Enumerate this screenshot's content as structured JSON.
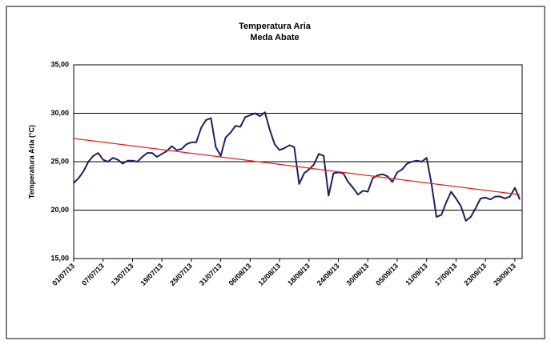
{
  "chart_data": {
    "type": "line",
    "title": "Temperatura Aria",
    "subtitle": "Meda Abate",
    "y_label": "Temperatura Aria (°C)",
    "categories": [
      "01/07/13",
      null,
      null,
      null,
      null,
      null,
      "07/07/13",
      null,
      null,
      null,
      null,
      null,
      "13/07/13",
      null,
      null,
      null,
      null,
      null,
      "19/07/13",
      null,
      null,
      null,
      null,
      null,
      "25/07/13",
      null,
      null,
      null,
      null,
      null,
      "31/07/13",
      null,
      null,
      null,
      null,
      null,
      "06/08/13",
      null,
      null,
      null,
      null,
      null,
      "12/08/13",
      null,
      null,
      null,
      null,
      null,
      "18/08/13",
      null,
      null,
      null,
      null,
      null,
      "24/08/13",
      null,
      null,
      null,
      null,
      null,
      "30/08/13",
      null,
      null,
      null,
      null,
      null,
      "05/09/13",
      null,
      null,
      null,
      null,
      null,
      "11/09/13",
      null,
      null,
      null,
      null,
      null,
      "17/09/13",
      null,
      null,
      null,
      null,
      null,
      "23/09/13",
      null,
      null,
      null,
      null,
      null,
      "29/09/13",
      null
    ],
    "series": [
      {
        "color": "#1f1f5f",
        "values": [
          22.8,
          23.3,
          24.0,
          25.0,
          25.6,
          25.9,
          25.2,
          25.0,
          25.4,
          25.2,
          24.8,
          25.1,
          25.1,
          25.0,
          25.5,
          25.9,
          25.9,
          25.5,
          25.8,
          26.1,
          26.6,
          26.2,
          26.3,
          26.8,
          27.0,
          27.0,
          28.5,
          29.3,
          29.5,
          26.5,
          25.6,
          27.5,
          28.0,
          28.7,
          28.6,
          29.6,
          29.8,
          30.0,
          29.7,
          30.1,
          28.3,
          26.8,
          26.2,
          26.4,
          26.7,
          26.5,
          22.7,
          23.8,
          24.2,
          24.7,
          25.8,
          25.6,
          21.5,
          23.8,
          23.9,
          23.8,
          22.9,
          22.3,
          21.6,
          22.0,
          21.9,
          23.3,
          23.6,
          23.7,
          23.5,
          22.9,
          23.9,
          24.2,
          24.8,
          25.0,
          25.1,
          25.0,
          25.4,
          22.7,
          19.3,
          19.5,
          20.8,
          21.9,
          21.2,
          20.4,
          18.9,
          19.3,
          20.2,
          21.2,
          21.3,
          21.1,
          21.4,
          21.4,
          21.2,
          21.4,
          22.3,
          21.1
        ]
      }
    ],
    "trendline": {
      "color": "#e02020",
      "values": [
        27.4,
        21.6
      ]
    },
    "ylim": [
      15,
      35
    ],
    "yticks": [
      {
        "value": 15,
        "label": "15,00"
      },
      {
        "value": 20,
        "label": "20,00"
      },
      {
        "value": 25,
        "label": "25,00"
      },
      {
        "value": 30,
        "label": "30,00"
      },
      {
        "value": 35,
        "label": "35,00"
      }
    ],
    "grid": true
  }
}
